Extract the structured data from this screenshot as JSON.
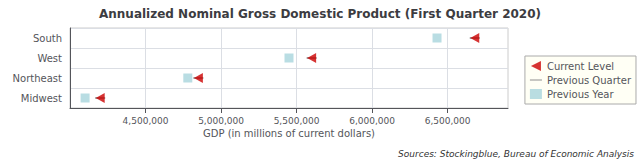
{
  "chart_data": {
    "type": "scatter",
    "title": "Annualized Nominal Gross Domestic Product (First Quarter 2020)",
    "xlabel": "GDP (in millions of current dollars)",
    "annotation": "Sources: Stockingblue, Bureau of Economic Analysis",
    "orientation": "horizontal",
    "categories": [
      "South",
      "West",
      "Northeast",
      "Midwest"
    ],
    "series": [
      {
        "name": "Current Level",
        "color": "#cc0000",
        "marker": "caret-left",
        "values": [
          6680000,
          5600000,
          4850000,
          4200000
        ]
      },
      {
        "name": "Previous Quarter",
        "color": "#888888",
        "marker": "line",
        "values": [
          6680000,
          5600000,
          4850000,
          4200000
        ]
      },
      {
        "name": "Previous Year",
        "color": "#a8d4dc",
        "marker": "square",
        "values": [
          6430000,
          5450000,
          4780000,
          4100000
        ]
      }
    ],
    "xlim": [
      4000000,
      6900000
    ],
    "xticks": [
      {
        "value": 4500000,
        "label": "4,500,000"
      },
      {
        "value": 5000000,
        "label": "5,000,000"
      },
      {
        "value": 5500000,
        "label": "5,500,000"
      },
      {
        "value": 6000000,
        "label": "6,000,000"
      },
      {
        "value": 6500000,
        "label": "6,500,000"
      }
    ],
    "grid": true,
    "legend": "right"
  }
}
